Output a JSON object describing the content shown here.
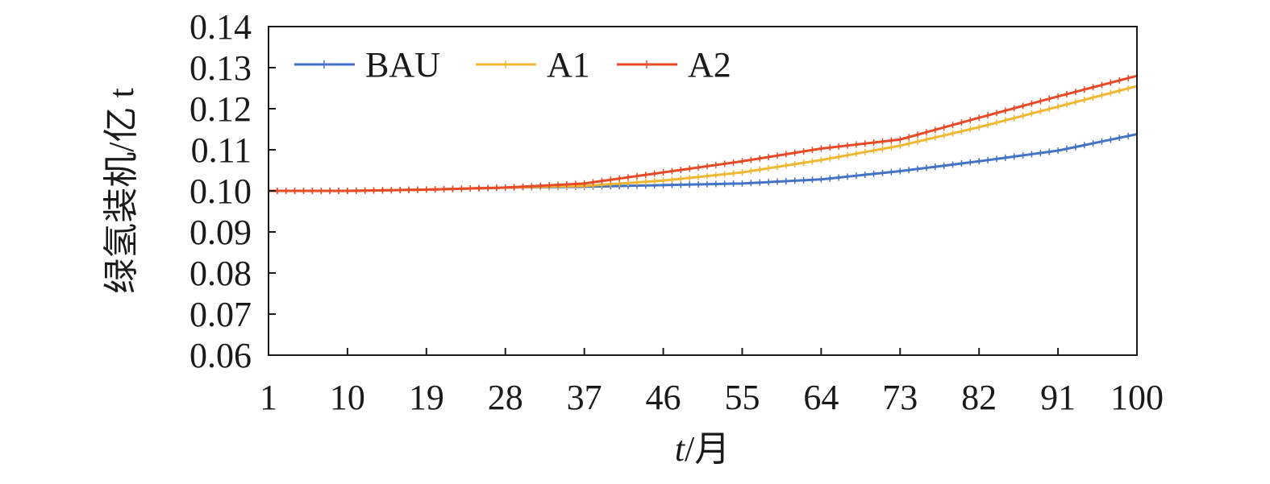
{
  "chart_data": {
    "type": "line",
    "xlabel_var": "t",
    "xlabel_unit": "/月",
    "ylabel": "绿氢装机/亿 t",
    "xlim": [
      1,
      100
    ],
    "ylim": [
      0.06,
      0.14
    ],
    "x_ticks": [
      1,
      10,
      19,
      28,
      37,
      46,
      55,
      64,
      73,
      82,
      91,
      100
    ],
    "y_ticks": [
      "0.06",
      "0.07",
      "0.08",
      "0.09",
      "0.10",
      "0.11",
      "0.12",
      "0.13",
      "0.14"
    ],
    "grid": false,
    "legend_position": "top-left",
    "markers": "small vertical tick at each monthly point",
    "series": [
      {
        "name": "BAU",
        "color": "#4472c4",
        "points": [
          [
            1,
            0.1
          ],
          [
            10,
            0.1
          ],
          [
            19,
            0.1003
          ],
          [
            28,
            0.1008
          ],
          [
            37,
            0.101
          ],
          [
            46,
            0.1014
          ],
          [
            55,
            0.1018
          ],
          [
            64,
            0.1028
          ],
          [
            73,
            0.1048
          ],
          [
            82,
            0.1072
          ],
          [
            91,
            0.1098
          ],
          [
            100,
            0.1138
          ]
        ]
      },
      {
        "name": "A1",
        "color": "#f0b732",
        "points": [
          [
            1,
            0.1
          ],
          [
            10,
            0.1
          ],
          [
            19,
            0.1003
          ],
          [
            28,
            0.1008
          ],
          [
            37,
            0.1012
          ],
          [
            46,
            0.1025
          ],
          [
            55,
            0.1045
          ],
          [
            64,
            0.1075
          ],
          [
            73,
            0.111
          ],
          [
            82,
            0.1155
          ],
          [
            91,
            0.1205
          ],
          [
            100,
            0.1255
          ]
        ]
      },
      {
        "name": "A2",
        "color": "#e84a27",
        "points": [
          [
            1,
            0.1
          ],
          [
            10,
            0.1
          ],
          [
            19,
            0.1003
          ],
          [
            28,
            0.1008
          ],
          [
            37,
            0.1018
          ],
          [
            46,
            0.1045
          ],
          [
            55,
            0.1072
          ],
          [
            64,
            0.1103
          ],
          [
            73,
            0.1125
          ],
          [
            82,
            0.1178
          ],
          [
            91,
            0.123
          ],
          [
            100,
            0.128
          ]
        ]
      }
    ]
  }
}
